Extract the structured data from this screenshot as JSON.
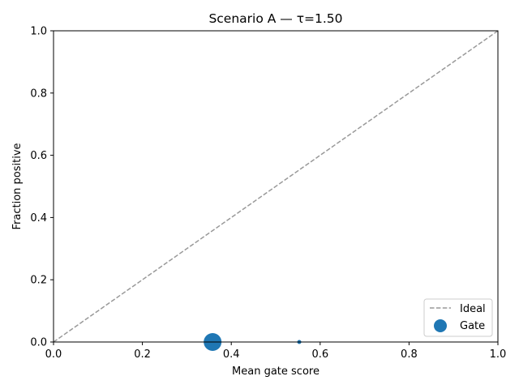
{
  "chart_data": {
    "type": "scatter",
    "title": "Scenario A — τ=1.50",
    "xlabel": "Mean gate score",
    "ylabel": "Fraction positive",
    "xlim": [
      0,
      1
    ],
    "ylim": [
      0,
      1
    ],
    "xticks": [
      "0.0",
      "0.2",
      "0.4",
      "0.6",
      "0.8",
      "1.0"
    ],
    "yticks": [
      "0.0",
      "0.2",
      "0.4",
      "0.6",
      "0.8",
      "1.0"
    ],
    "grid": false,
    "legend_position": "bottom-right",
    "reference_line": {
      "name": "Ideal",
      "x": [
        0,
        1
      ],
      "y": [
        0,
        1
      ],
      "style": "dashed",
      "color": "#999999"
    },
    "series": [
      {
        "name": "Gate",
        "color": "#1f77b4",
        "points": [
          {
            "x": 0.358,
            "y": 0.0,
            "weight": 1.0
          },
          {
            "x": 0.553,
            "y": 0.0,
            "weight": 0.05
          }
        ]
      }
    ]
  }
}
